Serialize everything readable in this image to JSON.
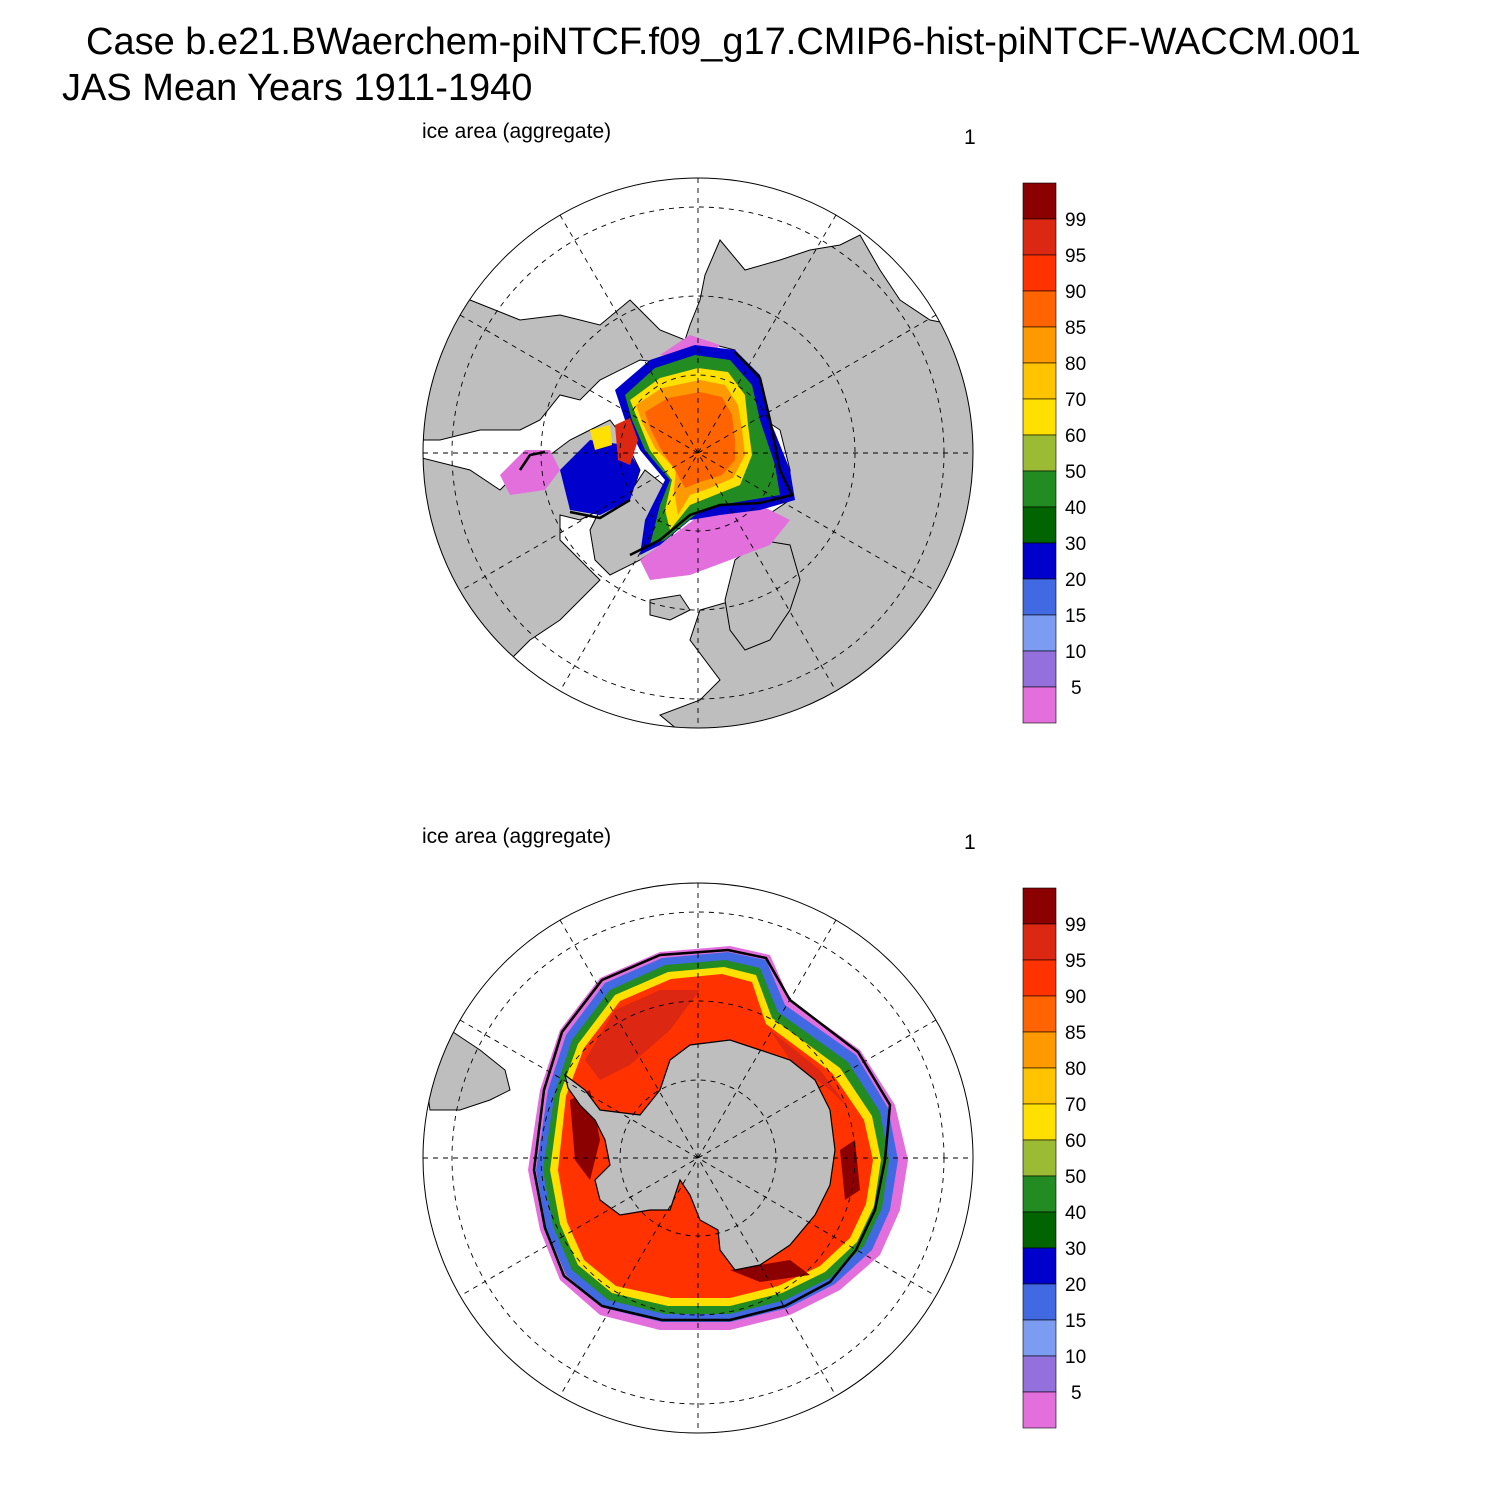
{
  "figure": {
    "title_line1": "Case b.e21.BWaerchem-piNTCF.f09_g17.CMIP6-hist-piNTCF-WACCM.001",
    "title_line2": "JAS Mean   Years 1911-1940"
  },
  "colors": {
    "land": "#bebebe",
    "ocean": "#ffffff",
    "grid": "#000000",
    "contour": "#000000"
  },
  "legend": {
    "levels": [
      5,
      10,
      15,
      20,
      30,
      40,
      50,
      60,
      70,
      80,
      85,
      90,
      95,
      99
    ],
    "tick_labels": [
      "5",
      "10",
      "15",
      "20",
      "30",
      "40",
      "50",
      "60",
      "70",
      "80",
      "85",
      "90",
      "95",
      "99"
    ],
    "colors": [
      "#e36fdd",
      "#9370db",
      "#7b9cf0",
      "#4169e1",
      "#0000cd",
      "#006400",
      "#228b22",
      "#9bbb35",
      "#ffe000",
      "#ffc300",
      "#ff9900",
      "#ff6400",
      "#ff3200",
      "#dc2812",
      "#8b0000"
    ]
  },
  "panels": [
    {
      "label": "ice area  (aggregate)",
      "number": "1",
      "hemisphere": "north"
    },
    {
      "label": "ice area  (aggregate)",
      "number": "1",
      "hemisphere": "south"
    }
  ]
}
